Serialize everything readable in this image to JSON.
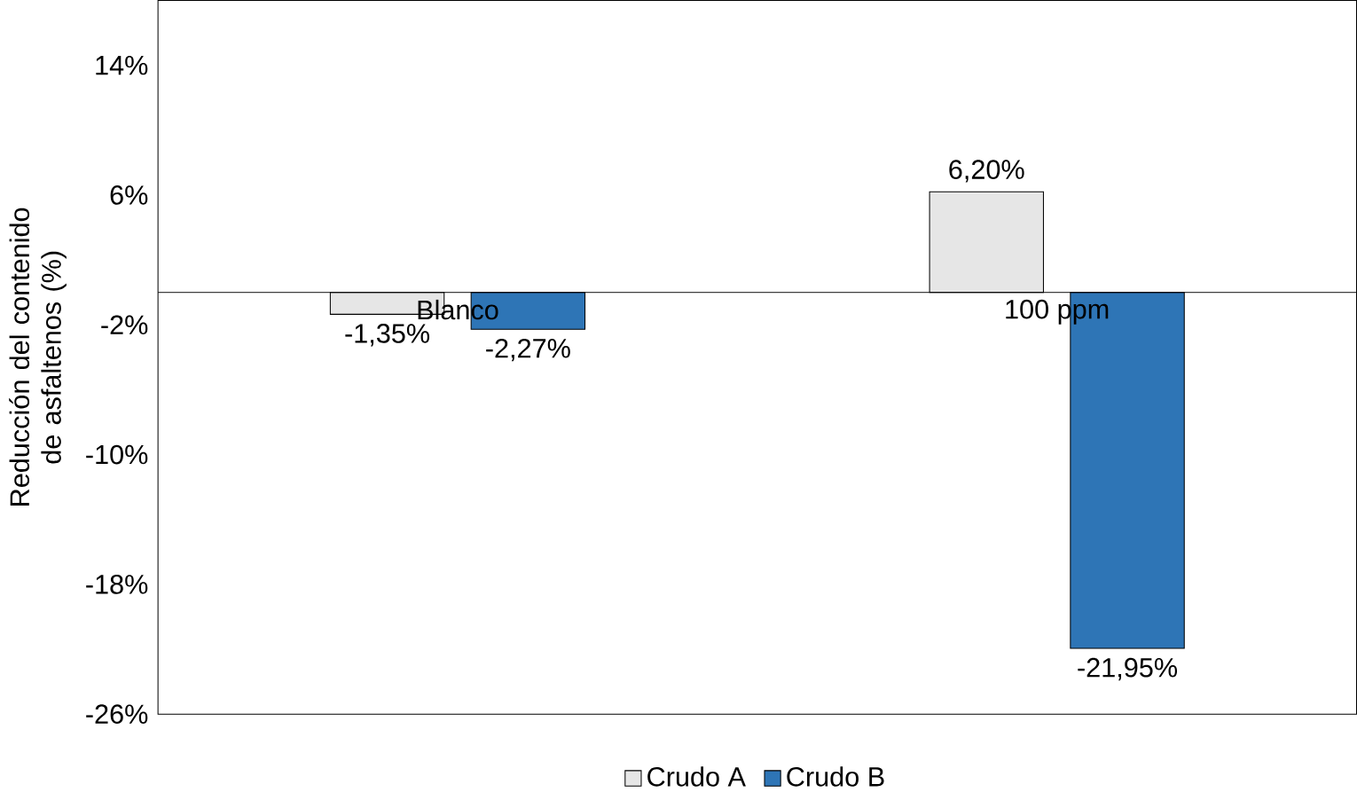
{
  "chart_data": {
    "type": "bar",
    "ylabel": "Reducción del contenido de asfaltenos (%)",
    "categories": [
      "Blanco",
      "100 ppm"
    ],
    "series": [
      {
        "name": "Crudo A",
        "color": "#e6e6e6",
        "values": [
          -1.35,
          6.2
        ],
        "value_labels": [
          "-1,35%",
          "6,20%"
        ]
      },
      {
        "name": "Crudo B",
        "color": "#2e75b6",
        "values": [
          -2.27,
          -21.95
        ],
        "value_labels": [
          "-2,27%",
          "-21,95%"
        ]
      }
    ],
    "ylim": [
      -26,
      18
    ],
    "yticks": [
      {
        "value": -26,
        "label": "-26%"
      },
      {
        "value": -18,
        "label": "-18%"
      },
      {
        "value": -10,
        "label": "-10%"
      },
      {
        "value": -2,
        "label": "-2%"
      },
      {
        "value": 6,
        "label": "6%"
      },
      {
        "value": 14,
        "label": "14%"
      }
    ],
    "grid": false,
    "legend": "bottom"
  }
}
